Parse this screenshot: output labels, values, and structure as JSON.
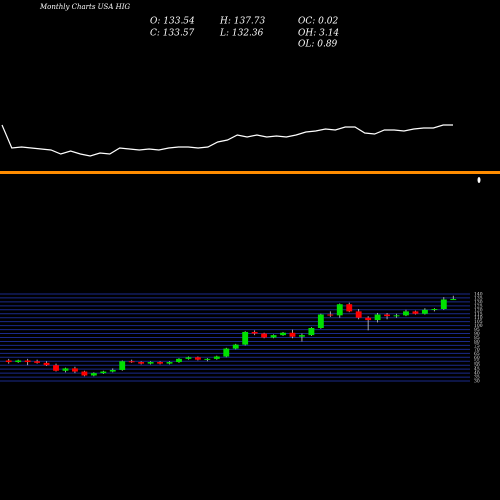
{
  "chart_data": [
    {
      "type": "candlestick",
      "title": "Monthly Charts USA HIG",
      "info": [
        "O: 133.54",
        "H: 137.73",
        "OC: 0.02",
        "C: 133.57",
        "L: 132.36",
        "OH: 3.14",
        "OL: 0.89"
      ],
      "up_color": "#00e000",
      "down_color": "#ff0000",
      "grid_color": "#1a2a8a",
      "grid": true,
      "ylim": [
        25,
        145
      ],
      "yticks": [
        30,
        35,
        40,
        45,
        50,
        55,
        60,
        65,
        70,
        75,
        80,
        85,
        90,
        95,
        100,
        105,
        110,
        115,
        120,
        125,
        130,
        135,
        140
      ],
      "ohlc": [
        [
          56,
          58,
          52,
          54
        ],
        [
          54,
          57,
          53,
          56
        ],
        [
          56,
          58,
          50,
          54
        ],
        [
          55,
          57,
          52,
          53
        ],
        [
          53,
          55,
          49,
          50
        ],
        [
          50,
          52,
          42,
          43
        ],
        [
          43,
          47,
          41,
          46
        ],
        [
          46,
          48,
          40,
          42
        ],
        [
          42,
          43,
          36,
          37
        ],
        [
          37,
          41,
          36,
          40
        ],
        [
          40,
          43,
          39,
          42
        ],
        [
          42,
          46,
          41,
          44
        ],
        [
          44,
          56,
          43,
          55
        ],
        [
          55,
          57,
          53,
          54
        ],
        [
          54,
          55,
          51,
          52
        ],
        [
          52,
          55,
          51,
          54
        ],
        [
          54,
          55,
          51,
          52
        ],
        [
          52,
          55,
          51,
          54
        ],
        [
          54,
          59,
          53,
          58
        ],
        [
          58,
          61,
          57,
          60
        ],
        [
          60,
          61,
          56,
          57
        ],
        [
          57,
          59,
          55,
          58
        ],
        [
          58,
          62,
          57,
          61
        ],
        [
          61,
          72,
          60,
          71
        ],
        [
          71,
          77,
          70,
          76
        ],
        [
          76,
          93,
          75,
          92
        ],
        [
          92,
          94,
          88,
          90
        ],
        [
          90,
          91,
          84,
          85
        ],
        [
          85,
          89,
          84,
          88
        ],
        [
          88,
          92,
          87,
          91
        ],
        [
          91,
          95,
          84,
          86
        ],
        [
          86,
          90,
          80,
          88
        ],
        [
          88,
          98,
          87,
          97
        ],
        [
          97,
          115,
          96,
          114
        ],
        [
          114,
          118,
          111,
          113
        ],
        [
          113,
          128,
          110,
          127
        ],
        [
          127,
          129,
          117,
          118
        ],
        [
          118,
          121,
          108,
          110
        ],
        [
          110,
          112,
          94,
          107
        ],
        [
          107,
          116,
          104,
          114
        ],
        [
          114,
          116,
          108,
          112
        ],
        [
          112,
          115,
          110,
          113
        ],
        [
          113,
          120,
          112,
          118
        ],
        [
          118,
          119,
          114,
          115
        ],
        [
          115,
          122,
          114,
          120
        ],
        [
          120,
          122,
          118,
          121
        ],
        [
          121,
          136,
          120,
          133
        ],
        [
          133.54,
          137.73,
          132.36,
          133.57
        ]
      ]
    },
    {
      "type": "line",
      "color": "#ffffff",
      "ylim": [
        0,
        70
      ],
      "values": [
        45,
        22,
        23,
        22,
        21,
        20,
        16,
        19,
        16,
        14,
        17,
        16,
        22,
        21,
        20,
        21,
        20,
        22,
        23,
        23,
        22,
        23,
        28,
        30,
        35,
        33,
        35,
        33,
        34,
        33,
        35,
        38,
        39,
        41,
        40,
        43,
        43,
        37,
        36,
        40,
        40,
        39,
        41,
        42,
        42,
        45,
        45
      ]
    }
  ]
}
